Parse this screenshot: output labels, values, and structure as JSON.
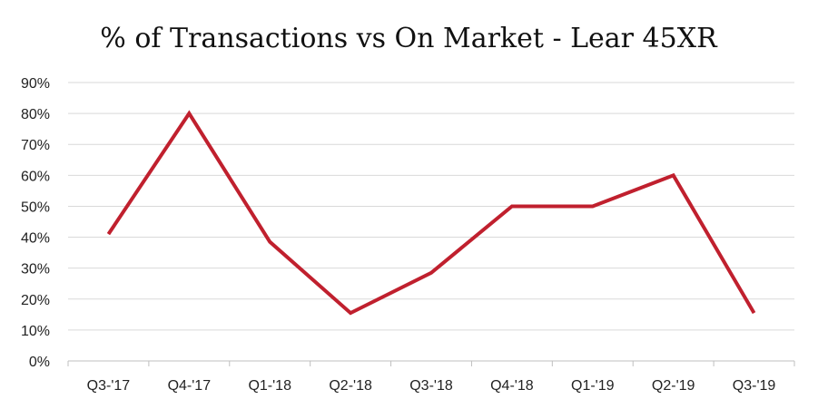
{
  "chart_data": {
    "type": "line",
    "title": "% of Transactions vs On Market - Lear 45XR",
    "xlabel": "",
    "ylabel": "",
    "categories": [
      "Q3-'17",
      "Q4-'17",
      "Q1-'18",
      "Q2-'18",
      "Q3-'18",
      "Q4-'18",
      "Q1-'19",
      "Q2-'19",
      "Q3-'19"
    ],
    "series": [
      {
        "values": [
          41,
          80,
          38.5,
          15.5,
          28.5,
          50,
          50,
          60,
          15.5
        ],
        "color": "#c0202e"
      }
    ],
    "ylim": [
      0,
      90
    ],
    "yticks": [
      0,
      10,
      20,
      30,
      40,
      50,
      60,
      70,
      80,
      90
    ],
    "ytick_labels": [
      "0%",
      "10%",
      "20%",
      "30%",
      "40%",
      "50%",
      "60%",
      "70%",
      "80%",
      "90%"
    ],
    "grid": true,
    "legend": "none"
  }
}
